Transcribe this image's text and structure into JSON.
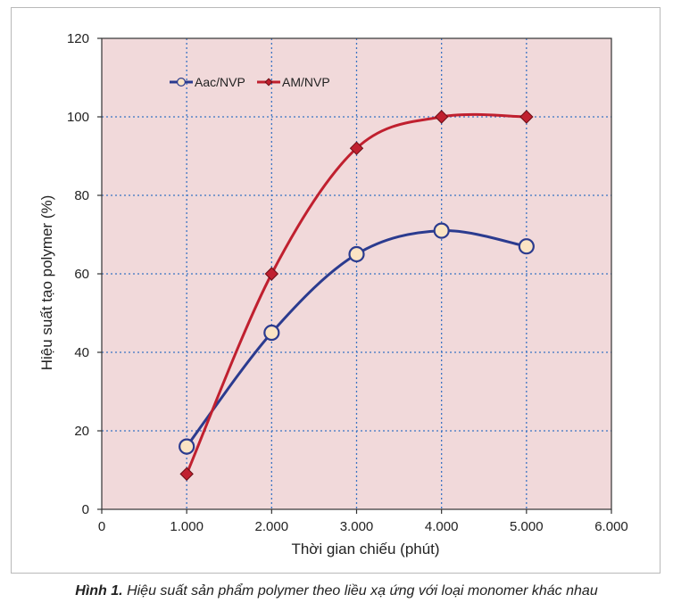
{
  "chart_data": {
    "type": "line",
    "xlabel": "Thời gian chiếu (phút)",
    "ylabel": "Hiệu suất tạo polymer (%)",
    "xlim": [
      0,
      6000
    ],
    "ylim": [
      0,
      120
    ],
    "x_ticks": [
      "0",
      "1.000",
      "2.000",
      "3.000",
      "4.000",
      "5.000",
      "6.000"
    ],
    "y_ticks": [
      "0",
      "20",
      "40",
      "60",
      "80",
      "100",
      "120"
    ],
    "grid": true,
    "legend_position": "top-left",
    "series": [
      {
        "name": "Aac/NVP",
        "color": "#2b3b8f",
        "marker": "circle",
        "x": [
          1000,
          2000,
          3000,
          4000,
          5000
        ],
        "y": [
          16,
          45,
          65,
          71,
          67
        ]
      },
      {
        "name": "AM/NVP",
        "color": "#c0202f",
        "marker": "diamond",
        "x": [
          1000,
          2000,
          3000,
          4000,
          5000
        ],
        "y": [
          9,
          60,
          92,
          100,
          100
        ]
      }
    ],
    "plot_background": "#f1d9da",
    "grid_color": "#3b74c4"
  },
  "caption": {
    "label": "Hình 1.",
    "text": " Hiệu suất sản phẩm polymer theo liều xạ ứng với loại monomer khác nhau"
  }
}
